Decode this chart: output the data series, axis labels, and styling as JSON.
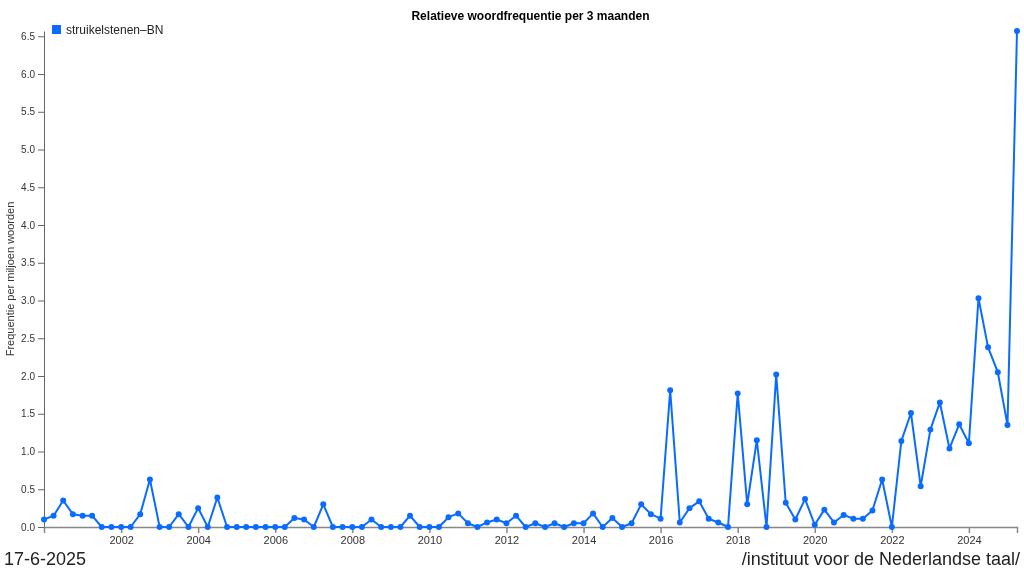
{
  "chart_data": {
    "type": "line",
    "title": "Relatieve woordfrequentie per 3 maanden",
    "ylabel": "Frequentie per miljoen woorden",
    "x": [
      "2000-01",
      "2000-04",
      "2000-07",
      "2000-10",
      "2001-01",
      "2001-04",
      "2001-07",
      "2001-10",
      "2002-01",
      "2002-04",
      "2002-07",
      "2002-10",
      "2003-01",
      "2003-04",
      "2003-07",
      "2003-10",
      "2004-01",
      "2004-04",
      "2004-07",
      "2004-10",
      "2005-01",
      "2005-04",
      "2005-07",
      "2005-10",
      "2006-01",
      "2006-04",
      "2006-07",
      "2006-10",
      "2007-01",
      "2007-04",
      "2007-07",
      "2007-10",
      "2008-01",
      "2008-04",
      "2008-07",
      "2008-10",
      "2009-01",
      "2009-04",
      "2009-07",
      "2009-10",
      "2010-01",
      "2010-04",
      "2010-07",
      "2010-10",
      "2011-01",
      "2011-04",
      "2011-07",
      "2011-10",
      "2012-01",
      "2012-04",
      "2012-07",
      "2012-10",
      "2013-01",
      "2013-04",
      "2013-07",
      "2013-10",
      "2014-01",
      "2014-04",
      "2014-07",
      "2014-10",
      "2015-01",
      "2015-04",
      "2015-07",
      "2015-10",
      "2016-01",
      "2016-04",
      "2016-07",
      "2016-10",
      "2017-01",
      "2017-04",
      "2017-07",
      "2017-10",
      "2018-01",
      "2018-04",
      "2018-07",
      "2018-10",
      "2019-01",
      "2019-04",
      "2019-07",
      "2019-10",
      "2020-01",
      "2020-04",
      "2020-07",
      "2020-10",
      "2021-01",
      "2021-04",
      "2021-07",
      "2021-10",
      "2022-01",
      "2022-04",
      "2022-07",
      "2022-10",
      "2023-01",
      "2023-04",
      "2023-07",
      "2023-10",
      "2024-01",
      "2024-04",
      "2024-07",
      "2024-10",
      "2025-01",
      "2025-04"
    ],
    "series": [
      {
        "name": "struikelstenen–BN",
        "color": "#0a6cff",
        "values": [
          0.1,
          0.15,
          0.35,
          0.17,
          0.15,
          0.15,
          0,
          0,
          0,
          0,
          0.17,
          0.63,
          0,
          0,
          0.17,
          0,
          0.25,
          0,
          0.39,
          0,
          0,
          0,
          0,
          0,
          0,
          0,
          0.12,
          0.1,
          0,
          0.3,
          0,
          0,
          0,
          0,
          0.1,
          0,
          0,
          0,
          0.15,
          0,
          0,
          0,
          0.13,
          0.18,
          0.05,
          0,
          0.06,
          0.1,
          0.05,
          0.15,
          0,
          0.05,
          0,
          0.05,
          0,
          0.05,
          0.05,
          0.18,
          0,
          0.12,
          0,
          0.05,
          0.3,
          0.17,
          0.11,
          1.81,
          0.06,
          0.25,
          0.34,
          0.11,
          0.06,
          0,
          1.77,
          0.3,
          1.15,
          0,
          2.02,
          0.32,
          0.1,
          0.37,
          0.03,
          0.23,
          0.06,
          0.16,
          0.11,
          0.11,
          0.22,
          0.63,
          0,
          1.14,
          1.51,
          0.54,
          1.29,
          1.65,
          1.04,
          1.36,
          1.11,
          3.03,
          2.38,
          2.05,
          1.35,
          6.57
        ]
      }
    ],
    "xlim": [
      "2000-01",
      "2025-04"
    ],
    "xticks": [
      "2002",
      "2004",
      "2006",
      "2008",
      "2010",
      "2012",
      "2014",
      "2016",
      "2018",
      "2020",
      "2022",
      "2024"
    ],
    "ylim": [
      0,
      6.57
    ],
    "yticks": [
      {
        "value": 0,
        "label": "0.0"
      },
      {
        "value": 0.5,
        "label": "0.5"
      },
      {
        "value": 1,
        "label": "1.0"
      },
      {
        "value": 1.5,
        "label": "1.5"
      },
      {
        "value": 2,
        "label": "2.0"
      },
      {
        "value": 2.5,
        "label": "2.5"
      },
      {
        "value": 3,
        "label": "3.0"
      },
      {
        "value": 3.5,
        "label": "3.5"
      },
      {
        "value": 4,
        "label": "4.0"
      },
      {
        "value": 4.5,
        "label": "4.5"
      },
      {
        "value": 5,
        "label": "5.0"
      },
      {
        "value": 5.5,
        "label": "5.5"
      },
      {
        "value": 6,
        "label": "6.0"
      },
      {
        "value": 6.5,
        "label": "6.5"
      }
    ],
    "grid": false,
    "legend": "top left",
    "marker": "circle",
    "line_style": "solid",
    "annotations": [
      "17-6-2025",
      "/instituut voor de Nederlandse taal/"
    ]
  }
}
